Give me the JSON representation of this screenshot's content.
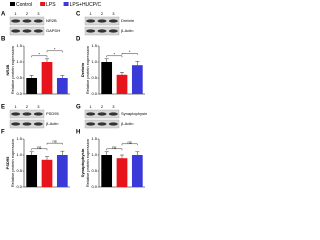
{
  "chart_data": [
    {
      "type": "bar",
      "letter": "B",
      "ylabel": [
        "NR2B",
        "Relative protein expression"
      ],
      "series": [
        {
          "name": "Control",
          "color": "#000000",
          "values": [
            0.5
          ],
          "errors": [
            0.08
          ]
        },
        {
          "name": "LPS",
          "color": "#e8141c",
          "values": [
            1.0
          ],
          "errors": [
            0.1
          ]
        },
        {
          "name": "LPS+HUCP/C",
          "color": "#3a3ad8",
          "values": [
            0.5
          ],
          "errors": [
            0.08
          ]
        }
      ],
      "ylim": [
        0,
        1.5
      ],
      "yticks": [
        {
          "value": 0,
          "label": "0.0"
        },
        {
          "value": 0.5,
          "label": "0.5"
        },
        {
          "value": 1,
          "label": "1.0"
        },
        {
          "value": 1.5,
          "label": "1.5"
        }
      ],
      "annotations": [
        "*",
        "*"
      ]
    },
    {
      "type": "bar",
      "letter": "D",
      "ylabel": [
        "Drebrin",
        "Relative protein expression"
      ],
      "series": [
        {
          "name": "Control",
          "color": "#000000",
          "values": [
            1.0
          ],
          "errors": [
            0.1
          ]
        },
        {
          "name": "LPS",
          "color": "#e8141c",
          "values": [
            0.6
          ],
          "errors": [
            0.08
          ]
        },
        {
          "name": "LPS+HUCP/C",
          "color": "#3a3ad8",
          "values": [
            0.9
          ],
          "errors": [
            0.12
          ]
        }
      ],
      "ylim": [
        0,
        1.5
      ],
      "yticks": [
        {
          "value": 0,
          "label": "0.0"
        },
        {
          "value": 0.5,
          "label": "0.5"
        },
        {
          "value": 1,
          "label": "1.0"
        },
        {
          "value": 1.5,
          "label": "1.5"
        }
      ],
      "annotations": [
        "*",
        "*"
      ]
    },
    {
      "type": "bar",
      "letter": "F",
      "ylabel": [
        "PSD95",
        "Relative protein expression"
      ],
      "series": [
        {
          "name": "Control",
          "color": "#000000",
          "values": [
            1.0
          ],
          "errors": [
            0.1
          ]
        },
        {
          "name": "LPS",
          "color": "#e8141c",
          "values": [
            0.85
          ],
          "errors": [
            0.1
          ]
        },
        {
          "name": "LPS+HUCP/C",
          "color": "#3a3ad8",
          "values": [
            1.0
          ],
          "errors": [
            0.12
          ]
        }
      ],
      "ylim": [
        0,
        1.5
      ],
      "yticks": [
        {
          "value": 0,
          "label": "0.0"
        },
        {
          "value": 0.5,
          "label": "0.5"
        },
        {
          "value": 1,
          "label": "1.0"
        },
        {
          "value": 1.5,
          "label": "1.5"
        }
      ],
      "annotations": [
        "ns",
        "ns"
      ]
    },
    {
      "type": "bar",
      "letter": "H",
      "ylabel": [
        "Synaptophysin",
        "Relative protein expression"
      ],
      "series": [
        {
          "name": "Control",
          "color": "#000000",
          "values": [
            1.0
          ],
          "errors": [
            0.1
          ]
        },
        {
          "name": "LPS",
          "color": "#e8141c",
          "values": [
            0.9
          ],
          "errors": [
            0.1
          ]
        },
        {
          "name": "LPS+HUCP/C",
          "color": "#3a3ad8",
          "values": [
            1.0
          ],
          "errors": [
            0.1
          ]
        }
      ],
      "ylim": [
        0,
        1.5
      ],
      "yticks": [
        {
          "value": 0,
          "label": "0.0"
        },
        {
          "value": 0.5,
          "label": "0.5"
        },
        {
          "value": 1,
          "label": "1.0"
        },
        {
          "value": 1.5,
          "label": "1.5"
        }
      ],
      "annotations": [
        "ns",
        "ns"
      ]
    }
  ],
  "blots": [
    {
      "letter": "A",
      "lanes": [
        "1",
        "2",
        "3"
      ],
      "bands": [
        "NR2B",
        "GAPDH"
      ]
    },
    {
      "letter": "C",
      "lanes": [
        "1",
        "2",
        "3"
      ],
      "bands": [
        "Drebrin",
        "β-Actin"
      ]
    },
    {
      "letter": "E",
      "lanes": [
        "1",
        "2",
        "3"
      ],
      "bands": [
        "PSD95",
        "β-Actin"
      ]
    },
    {
      "letter": "G",
      "lanes": [
        "1",
        "2",
        "3"
      ],
      "bands": [
        "Synaptophysin",
        "β-Actin"
      ]
    }
  ]
}
